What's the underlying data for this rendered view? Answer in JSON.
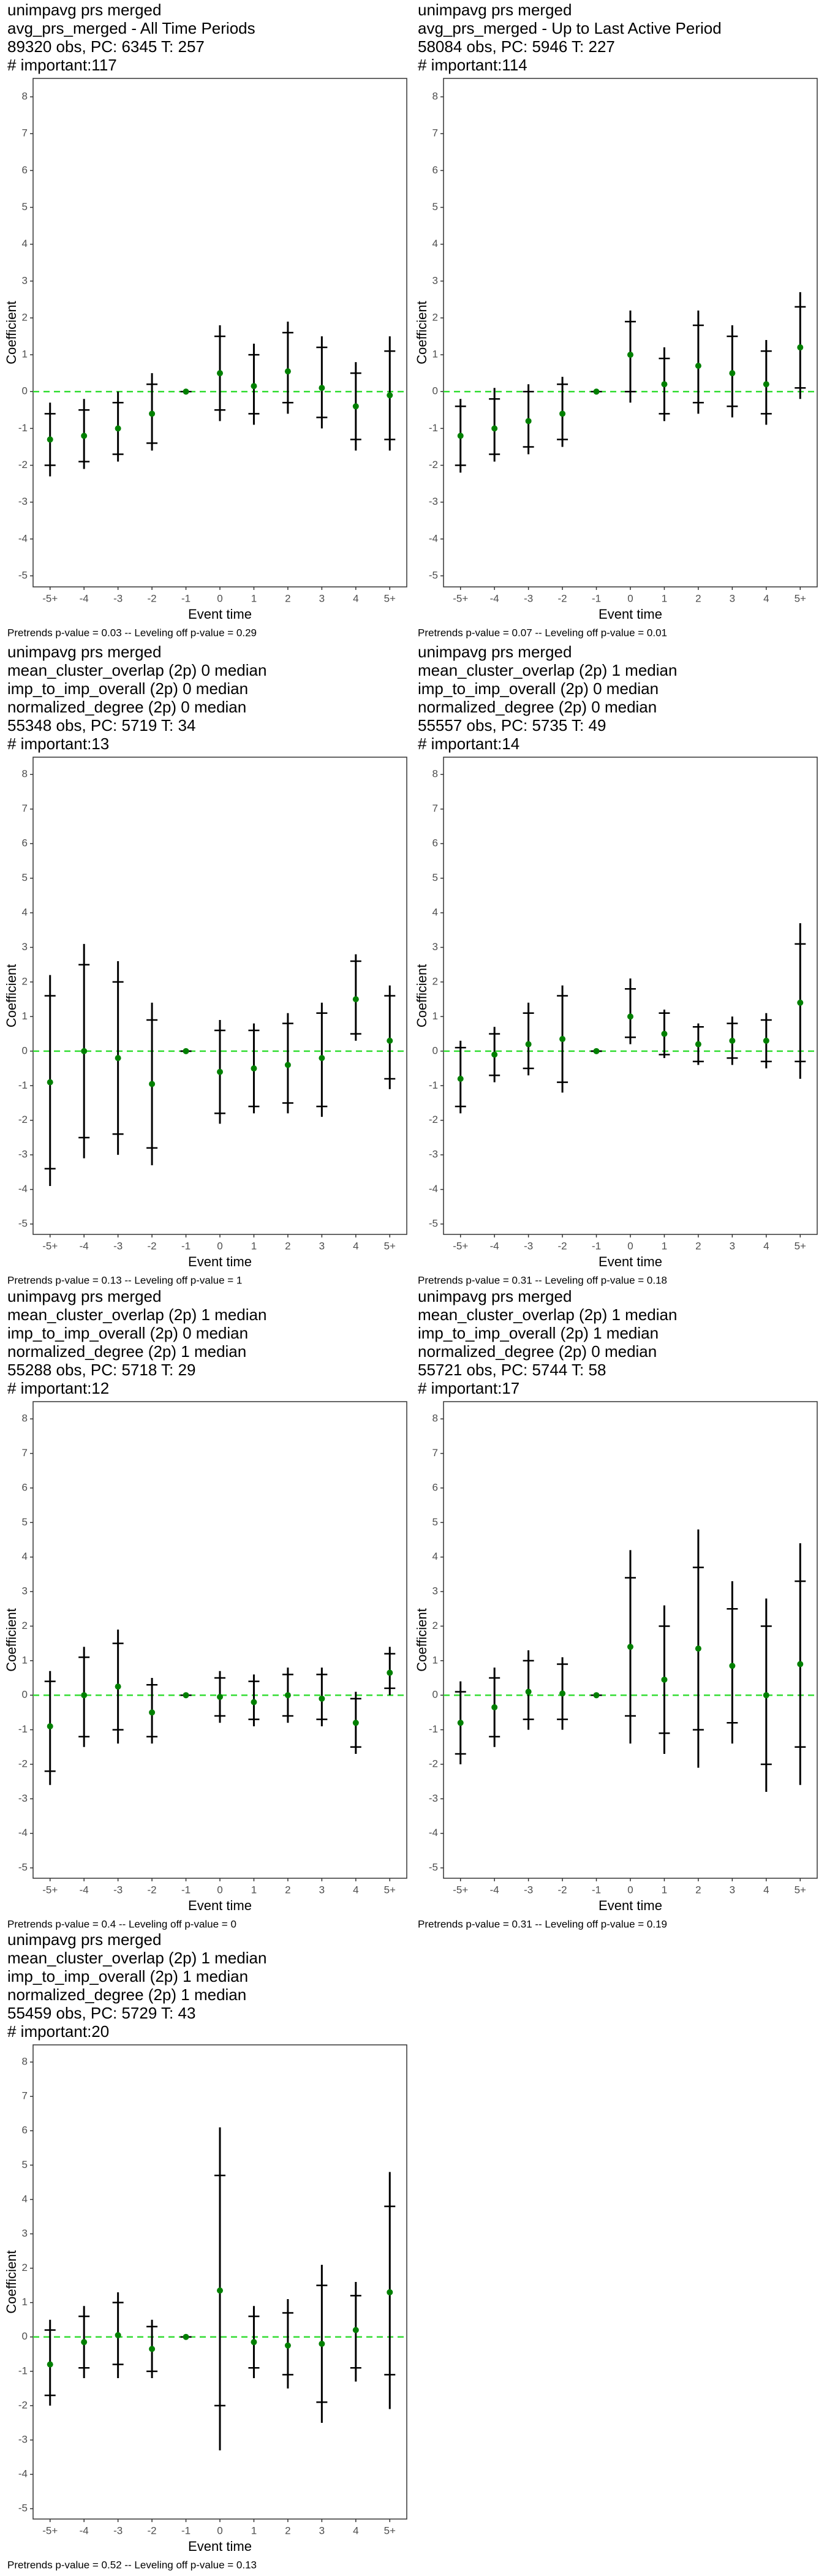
{
  "chart_data": [
    {
      "type": "errorbar",
      "title_lines": [
        "unimpavg prs merged",
        "avg_prs_merged - All Time Periods",
        "89320 obs, PC: 6345 T: 257",
        "# important:117"
      ],
      "categories": [
        "-5+",
        "-4",
        "-3",
        "-2",
        "-1",
        "0",
        "1",
        "2",
        "3",
        "4",
        "5+"
      ],
      "values": [
        -1.3,
        -1.2,
        -1.0,
        -0.6,
        0,
        0.5,
        0.15,
        0.55,
        0.1,
        -0.4,
        -0.1
      ],
      "lower": [
        -2.3,
        -2.1,
        -1.9,
        -1.6,
        0,
        -0.8,
        -0.9,
        -0.6,
        -1.0,
        -1.6,
        -1.6
      ],
      "upper": [
        -0.3,
        -0.2,
        0.0,
        0.5,
        0,
        1.8,
        1.3,
        1.9,
        1.5,
        0.8,
        1.5
      ],
      "lower_inner": [
        -2.0,
        -1.9,
        -1.7,
        -1.4,
        0,
        -0.5,
        -0.6,
        -0.3,
        -0.7,
        -1.3,
        -1.3
      ],
      "upper_inner": [
        -0.6,
        -0.5,
        -0.3,
        0.2,
        0,
        1.5,
        1.0,
        1.6,
        1.2,
        0.5,
        1.1
      ],
      "ylim": [
        -5.3,
        8.5
      ],
      "yticks": [
        -5,
        -4,
        -3,
        -2,
        -1,
        0,
        1,
        2,
        3,
        4,
        5,
        6,
        7,
        8
      ],
      "reference_line": 0,
      "point_color": "#008000",
      "reference_color": "#33dd33",
      "y_label": "Coefficient",
      "x_label": "Event time",
      "footnote": "Pretrends p-value = 0.03 -- Leveling off p-value = 0.29"
    },
    {
      "type": "errorbar",
      "title_lines": [
        "unimpavg prs merged",
        "avg_prs_merged - Up to Last Active Period",
        "58084 obs, PC: 5946 T: 227",
        "# important:114"
      ],
      "categories": [
        "-5+",
        "-4",
        "-3",
        "-2",
        "-1",
        "0",
        "1",
        "2",
        "3",
        "4",
        "5+"
      ],
      "values": [
        -1.2,
        -1.0,
        -0.8,
        -0.6,
        0,
        1.0,
        0.2,
        0.7,
        0.5,
        0.2,
        1.2
      ],
      "lower": [
        -2.2,
        -1.9,
        -1.7,
        -1.5,
        0,
        -0.3,
        -0.8,
        -0.6,
        -0.7,
        -0.9,
        -0.2
      ],
      "upper": [
        -0.2,
        0.1,
        0.2,
        0.4,
        0,
        2.2,
        1.2,
        2.2,
        1.8,
        1.4,
        2.7
      ],
      "lower_inner": [
        -2.0,
        -1.7,
        -1.5,
        -1.3,
        0,
        0.0,
        -0.6,
        -0.3,
        -0.4,
        -0.6,
        0.1
      ],
      "upper_inner": [
        -0.4,
        -0.2,
        0.0,
        0.2,
        0,
        1.9,
        0.9,
        1.8,
        1.5,
        1.1,
        2.3
      ],
      "ylim": [
        -5.3,
        8.5
      ],
      "yticks": [
        -5,
        -4,
        -3,
        -2,
        -1,
        0,
        1,
        2,
        3,
        4,
        5,
        6,
        7,
        8
      ],
      "reference_line": 0,
      "point_color": "#008000",
      "reference_color": "#33dd33",
      "y_label": "Coefficient",
      "x_label": "Event time",
      "footnote": "Pretrends p-value = 0.07 -- Leveling off p-value = 0.01"
    },
    {
      "type": "errorbar",
      "title_lines": [
        "unimpavg prs merged",
        "mean_cluster_overlap (2p) 0 median",
        "imp_to_imp_overall (2p) 0 median",
        "normalized_degree (2p) 0 median",
        "55348 obs, PC: 5719 T: 34",
        "# important:13"
      ],
      "categories": [
        "-5+",
        "-4",
        "-3",
        "-2",
        "-1",
        "0",
        "1",
        "2",
        "3",
        "4",
        "5+"
      ],
      "values": [
        -0.9,
        0,
        -0.2,
        -0.95,
        0,
        -0.6,
        -0.5,
        -0.4,
        -0.2,
        1.5,
        0.3
      ],
      "lower": [
        -3.9,
        -3.1,
        -3.0,
        -3.3,
        0,
        -2.1,
        -1.8,
        -1.8,
        -1.9,
        0.3,
        -1.1
      ],
      "upper": [
        2.2,
        3.1,
        2.6,
        1.4,
        0,
        0.9,
        0.8,
        1.1,
        1.4,
        2.8,
        1.9
      ],
      "lower_inner": [
        -3.4,
        -2.5,
        -2.4,
        -2.8,
        0,
        -1.8,
        -1.6,
        -1.5,
        -1.6,
        0.5,
        -0.8
      ],
      "upper_inner": [
        1.6,
        2.5,
        2.0,
        0.9,
        0,
        0.6,
        0.6,
        0.8,
        1.1,
        2.6,
        1.6
      ],
      "ylim": [
        -5.3,
        8.5
      ],
      "yticks": [
        -5,
        -4,
        -3,
        -2,
        -1,
        0,
        1,
        2,
        3,
        4,
        5,
        6,
        7,
        8
      ],
      "reference_line": 0,
      "point_color": "#008000",
      "reference_color": "#33dd33",
      "y_label": "Coefficient",
      "x_label": "Event time",
      "footnote": "Pretrends p-value = 0.13 -- Leveling off p-value = 1"
    },
    {
      "type": "errorbar",
      "title_lines": [
        "unimpavg prs merged",
        "mean_cluster_overlap (2p) 1 median",
        "imp_to_imp_overall (2p) 0 median",
        "normalized_degree (2p) 0 median",
        "55557 obs, PC: 5735 T: 49",
        "# important:14"
      ],
      "categories": [
        "-5+",
        "-4",
        "-3",
        "-2",
        "-1",
        "0",
        "1",
        "2",
        "3",
        "4",
        "5+"
      ],
      "values": [
        -0.8,
        -0.1,
        0.2,
        0.35,
        0,
        1.0,
        0.5,
        0.2,
        0.3,
        0.3,
        1.4
      ],
      "lower": [
        -1.8,
        -0.9,
        -0.7,
        -1.2,
        0,
        0.2,
        -0.2,
        -0.4,
        -0.4,
        -0.5,
        -0.8
      ],
      "upper": [
        0.3,
        0.7,
        1.4,
        1.9,
        0,
        2.1,
        1.2,
        0.8,
        1.0,
        1.1,
        3.7
      ],
      "lower_inner": [
        -1.6,
        -0.7,
        -0.5,
        -0.9,
        0,
        0.4,
        -0.1,
        -0.3,
        -0.2,
        -0.3,
        -0.3
      ],
      "upper_inner": [
        0.1,
        0.5,
        1.1,
        1.6,
        0,
        1.8,
        1.1,
        0.7,
        0.8,
        0.9,
        3.1
      ],
      "ylim": [
        -5.3,
        8.5
      ],
      "yticks": [
        -5,
        -4,
        -3,
        -2,
        -1,
        0,
        1,
        2,
        3,
        4,
        5,
        6,
        7,
        8
      ],
      "reference_line": 0,
      "point_color": "#008000",
      "reference_color": "#33dd33",
      "y_label": "Coefficient",
      "x_label": "Event time",
      "footnote": "Pretrends p-value = 0.31 -- Leveling off p-value = 0.18"
    },
    {
      "type": "errorbar",
      "title_lines": [
        "unimpavg prs merged",
        "mean_cluster_overlap (2p) 1 median",
        "imp_to_imp_overall (2p) 0 median",
        "normalized_degree (2p) 1 median",
        "55288 obs, PC: 5718 T: 29",
        "# important:12"
      ],
      "categories": [
        "-5+",
        "-4",
        "-3",
        "-2",
        "-1",
        "0",
        "1",
        "2",
        "3",
        "4",
        "5+"
      ],
      "values": [
        -0.9,
        0,
        0.25,
        -0.5,
        0,
        -0.05,
        -0.2,
        0.0,
        -0.1,
        -0.8,
        0.65
      ],
      "lower": [
        -2.6,
        -1.5,
        -1.4,
        -1.4,
        0,
        -0.8,
        -0.9,
        -0.8,
        -0.9,
        -1.7,
        0.0
      ],
      "upper": [
        0.7,
        1.4,
        1.9,
        0.5,
        0,
        0.7,
        0.6,
        0.8,
        0.8,
        0.1,
        1.4
      ],
      "lower_inner": [
        -2.2,
        -1.2,
        -1.0,
        -1.2,
        0,
        -0.6,
        -0.7,
        -0.6,
        -0.7,
        -1.5,
        0.2
      ],
      "upper_inner": [
        0.4,
        1.1,
        1.5,
        0.3,
        0,
        0.5,
        0.4,
        0.6,
        0.6,
        -0.1,
        1.2
      ],
      "ylim": [
        -5.3,
        8.5
      ],
      "yticks": [
        -5,
        -4,
        -3,
        -2,
        -1,
        0,
        1,
        2,
        3,
        4,
        5,
        6,
        7,
        8
      ],
      "reference_line": 0,
      "point_color": "#008000",
      "reference_color": "#33dd33",
      "y_label": "Coefficient",
      "x_label": "Event time",
      "footnote": "Pretrends p-value = 0.4 -- Leveling off p-value = 0"
    },
    {
      "type": "errorbar",
      "title_lines": [
        "unimpavg prs merged",
        "mean_cluster_overlap (2p) 1 median",
        "imp_to_imp_overall (2p) 1 median",
        "normalized_degree (2p) 0 median",
        "55721 obs, PC: 5744 T: 58",
        "# important:17"
      ],
      "categories": [
        "-5+",
        "-4",
        "-3",
        "-2",
        "-1",
        "0",
        "1",
        "2",
        "3",
        "4",
        "5+"
      ],
      "values": [
        -0.8,
        -0.35,
        0.1,
        0.05,
        0,
        1.4,
        0.45,
        1.35,
        0.85,
        0.0,
        0.9
      ],
      "lower": [
        -2.0,
        -1.5,
        -1.0,
        -1.0,
        0,
        -1.4,
        -1.7,
        -2.1,
        -1.4,
        -2.8,
        -2.6
      ],
      "upper": [
        0.4,
        0.8,
        1.3,
        1.1,
        0,
        4.2,
        2.6,
        4.8,
        3.3,
        2.8,
        4.4
      ],
      "lower_inner": [
        -1.7,
        -1.2,
        -0.7,
        -0.7,
        0,
        -0.6,
        -1.1,
        -1.0,
        -0.8,
        -2.0,
        -1.5
      ],
      "upper_inner": [
        0.1,
        0.5,
        1.0,
        0.9,
        0,
        3.4,
        2.0,
        3.7,
        2.5,
        2.0,
        3.3
      ],
      "ylim": [
        -5.3,
        8.5
      ],
      "yticks": [
        -5,
        -4,
        -3,
        -2,
        -1,
        0,
        1,
        2,
        3,
        4,
        5,
        6,
        7,
        8
      ],
      "reference_line": 0,
      "point_color": "#008000",
      "reference_color": "#33dd33",
      "y_label": "Coefficient",
      "x_label": "Event time",
      "footnote": "Pretrends p-value = 0.31 -- Leveling off p-value = 0.19"
    },
    {
      "type": "errorbar",
      "title_lines": [
        "unimpavg prs merged",
        "mean_cluster_overlap (2p) 1 median",
        "imp_to_imp_overall (2p) 1 median",
        "normalized_degree (2p) 1 median",
        "55459 obs, PC: 5729 T: 43",
        "# important:20"
      ],
      "categories": [
        "-5+",
        "-4",
        "-3",
        "-2",
        "-1",
        "0",
        "1",
        "2",
        "3",
        "4",
        "5+"
      ],
      "values": [
        -0.8,
        -0.15,
        0.05,
        -0.35,
        0,
        1.35,
        -0.15,
        -0.25,
        -0.2,
        0.2,
        1.3
      ],
      "lower": [
        -2.0,
        -1.2,
        -1.2,
        -1.2,
        0,
        -3.3,
        -1.2,
        -1.5,
        -2.5,
        -1.3,
        -2.1
      ],
      "upper": [
        0.5,
        0.9,
        1.3,
        0.5,
        0,
        6.1,
        0.9,
        1.1,
        2.1,
        1.6,
        4.8
      ],
      "lower_inner": [
        -1.7,
        -0.9,
        -0.8,
        -1.0,
        0,
        -2.0,
        -0.9,
        -1.1,
        -1.9,
        -0.9,
        -1.1
      ],
      "upper_inner": [
        0.2,
        0.6,
        1.0,
        0.3,
        0,
        4.7,
        0.6,
        0.7,
        1.5,
        1.2,
        3.8
      ],
      "ylim": [
        -5.3,
        8.5
      ],
      "yticks": [
        -5,
        -4,
        -3,
        -2,
        -1,
        0,
        1,
        2,
        3,
        4,
        5,
        6,
        7,
        8
      ],
      "reference_line": 0,
      "point_color": "#008000",
      "reference_color": "#33dd33",
      "y_label": "Coefficient",
      "x_label": "Event time",
      "footnote": "Pretrends p-value = 0.52 -- Leveling off p-value = 0.13"
    }
  ]
}
